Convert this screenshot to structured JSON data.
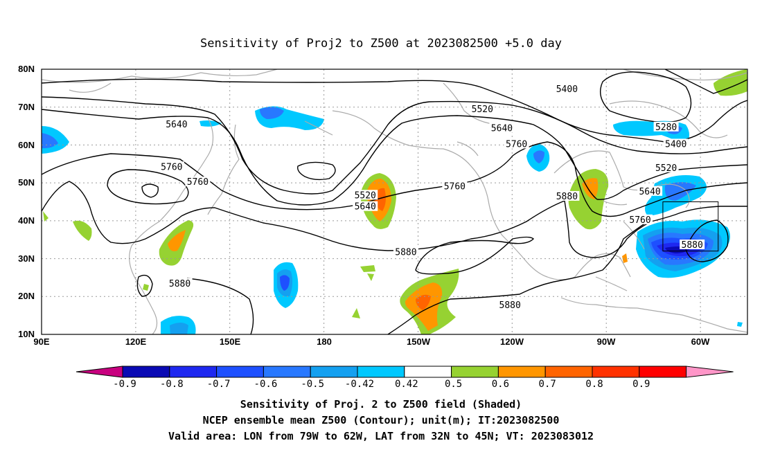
{
  "title": "Sensitivity of Proj2 to Z500 at 2023082500 +5.0 day",
  "lat_labels": [
    "80N",
    "70N",
    "60N",
    "50N",
    "40N",
    "30N",
    "20N",
    "10N"
  ],
  "lon_labels": [
    "90E",
    "120E",
    "150E",
    "180",
    "150W",
    "120W",
    "90W",
    "60W"
  ],
  "contour_labels": [
    {
      "text": "5400",
      "lon": 251.5,
      "lat": 74.5
    },
    {
      "text": "5520",
      "lon": 225.5,
      "lat": 69.2
    },
    {
      "text": "5640",
      "lon": 231.5,
      "lat": 64.2
    },
    {
      "text": "5760",
      "lon": 236,
      "lat": 60.0
    },
    {
      "text": "5280",
      "lon": 282,
      "lat": 64.5
    },
    {
      "text": "5400",
      "lon": 285,
      "lat": 60.0
    },
    {
      "text": "5520",
      "lon": 282,
      "lat": 53.7
    },
    {
      "text": "5640",
      "lon": 131.5,
      "lat": 65.2
    },
    {
      "text": "5760",
      "lon": 130,
      "lat": 54.0
    },
    {
      "text": "5760",
      "lon": 138,
      "lat": 50.0
    },
    {
      "text": "5520",
      "lon": 189.5,
      "lat": 46.5
    },
    {
      "text": "5640",
      "lon": 189.5,
      "lat": 43.5
    },
    {
      "text": "5760",
      "lon": 217,
      "lat": 48.8
    },
    {
      "text": "5880",
      "lon": 251.5,
      "lat": 46.2
    },
    {
      "text": "5640",
      "lon": 277,
      "lat": 47.5
    },
    {
      "text": "5760",
      "lon": 274,
      "lat": 40.0
    },
    {
      "text": "5880",
      "lon": 290,
      "lat": 33.4
    },
    {
      "text": "5880",
      "lon": 202,
      "lat": 31.5
    },
    {
      "text": "5880",
      "lon": 132.5,
      "lat": 23.2
    },
    {
      "text": "5880",
      "lon": 234,
      "lat": 17.5
    }
  ],
  "valid_box": {
    "lon_min": 281,
    "lon_max": 298,
    "lat_min": 32,
    "lat_max": 45
  },
  "colorbar": {
    "labels": [
      "-0.9",
      "-0.8",
      "-0.7",
      "-0.6",
      "-0.5",
      "-0.42",
      "0.42",
      "0.5",
      "0.6",
      "0.7",
      "0.8",
      "0.9"
    ],
    "colors": [
      "#0a0ab4",
      "#1e28f0",
      "#1e50ff",
      "#2878ff",
      "#14a0f0",
      "#00c8ff",
      "#ffffff",
      "#96d232",
      "#ff9600",
      "#ff6400",
      "#ff3200",
      "#ff0000"
    ],
    "low_color": "#c8007f",
    "high_color": "#ff96c8"
  },
  "footer": {
    "line1": "Sensitivity of Proj. 2 to Z500 field (Shaded)",
    "line2": "NCEP ensemble mean Z500 (Contour); unit(m); IT:2023082500",
    "line3": "Valid area: LON from 79W to 62W, LAT from 32N to 45N; VT: 2023083012"
  }
}
